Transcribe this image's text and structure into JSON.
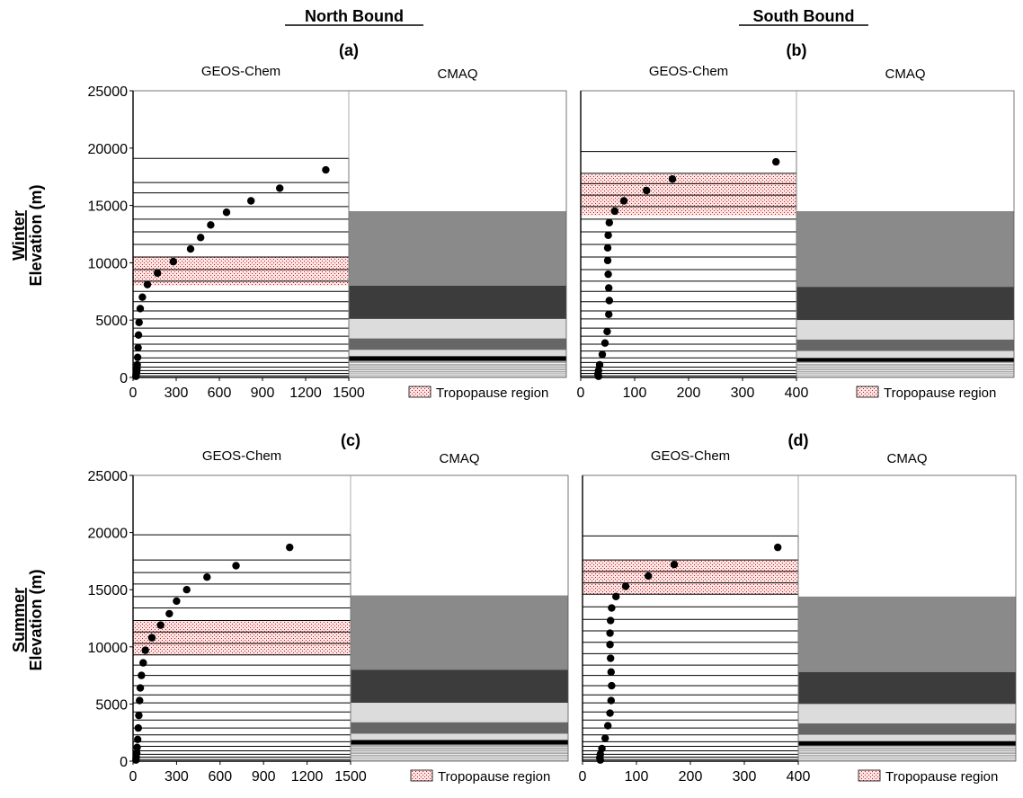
{
  "headers": {
    "north": "North Bound",
    "south": "South Bound",
    "winter": "Winter",
    "summer": "Summer",
    "ylabel": "Elevation (m)"
  },
  "legend_label": "Tropopause region",
  "colors": {
    "black": "#000000",
    "tropo_dot": "#d01818",
    "tropo_bg": "#fbe6e6",
    "cmaq_band_dark": "#3c3c3c",
    "cmaq_band_mid": "#8a8a8a",
    "cmaq_band_gray": "#666666",
    "cmaq_band_light": "#dcdcdc",
    "cmaq_band_thin": "#a8a8a8"
  },
  "chart_data": [
    {
      "type": "scatter",
      "id": "a",
      "panel_label": "(a)",
      "left_title": "GEOS-Chem",
      "right_title": "CMAQ",
      "ylim": [
        0,
        25000
      ],
      "yticks": [
        0,
        5000,
        10000,
        15000,
        20000,
        25000
      ],
      "xlim": [
        0,
        1500
      ],
      "xticks": [
        0,
        300,
        600,
        900,
        1200,
        1500
      ],
      "geos_levels": [
        0,
        150,
        350,
        600,
        900,
        1300,
        1700,
        2300,
        2900,
        3600,
        4300,
        5100,
        5800,
        6600,
        7500,
        8400,
        9400,
        10500,
        11600,
        12700,
        13800,
        14900,
        16100,
        17000,
        19100
      ],
      "tropopause": [
        8000,
        10500
      ],
      "points": [
        {
          "x": 20,
          "y": 100
        },
        {
          "x": 22,
          "y": 250
        },
        {
          "x": 25,
          "y": 480
        },
        {
          "x": 27,
          "y": 750
        },
        {
          "x": 29,
          "y": 1100
        },
        {
          "x": 32,
          "y": 1750
        },
        {
          "x": 35,
          "y": 2600
        },
        {
          "x": 38,
          "y": 3700
        },
        {
          "x": 42,
          "y": 4800
        },
        {
          "x": 50,
          "y": 6000
        },
        {
          "x": 65,
          "y": 7000
        },
        {
          "x": 100,
          "y": 8100
        },
        {
          "x": 170,
          "y": 9100
        },
        {
          "x": 280,
          "y": 10100
        },
        {
          "x": 400,
          "y": 11200
        },
        {
          "x": 470,
          "y": 12200
        },
        {
          "x": 540,
          "y": 13300
        },
        {
          "x": 650,
          "y": 14400
        },
        {
          "x": 820,
          "y": 15400
        },
        {
          "x": 1020,
          "y": 16500
        },
        {
          "x": 1340,
          "y": 18100
        }
      ],
      "cmaq_bands": [
        {
          "from": 8000,
          "to": 14500,
          "color": "#8a8a8a"
        },
        {
          "from": 5100,
          "to": 8000,
          "color": "#3c3c3c"
        },
        {
          "from": 3400,
          "to": 5100,
          "color": "#dcdcdc"
        },
        {
          "from": 2400,
          "to": 3400,
          "color": "#666666"
        },
        {
          "from": 1850,
          "to": 2400,
          "color": "#dcdcdc"
        },
        {
          "from": 1450,
          "to": 1850,
          "color": "#000000"
        },
        {
          "from": 0,
          "to": 1450,
          "color": "#a8a8a8"
        }
      ],
      "cmaq_lines": [
        100,
        250,
        400,
        600,
        800,
        1000,
        1200
      ]
    },
    {
      "type": "scatter",
      "id": "b",
      "panel_label": "(b)",
      "left_title": "GEOS-Chem",
      "right_title": "CMAQ",
      "ylim": [
        0,
        25000
      ],
      "yticks": [],
      "xlim": [
        0,
        400
      ],
      "xticks": [
        0,
        100,
        200,
        300,
        400
      ],
      "geos_levels": [
        0,
        150,
        350,
        600,
        900,
        1300,
        1700,
        2300,
        2900,
        3600,
        4300,
        5100,
        5800,
        6600,
        7500,
        8400,
        9400,
        10500,
        11600,
        12700,
        13800,
        14900,
        15900,
        16900,
        17800,
        19700
      ],
      "tropopause": [
        14100,
        17700
      ],
      "points": [
        {
          "x": 33,
          "y": 100
        },
        {
          "x": 32,
          "y": 300
        },
        {
          "x": 33,
          "y": 600
        },
        {
          "x": 35,
          "y": 1100
        },
        {
          "x": 40,
          "y": 2000
        },
        {
          "x": 45,
          "y": 3000
        },
        {
          "x": 49,
          "y": 4000
        },
        {
          "x": 52,
          "y": 5500
        },
        {
          "x": 53,
          "y": 6700
        },
        {
          "x": 52,
          "y": 7800
        },
        {
          "x": 51,
          "y": 9000
        },
        {
          "x": 50,
          "y": 10200
        },
        {
          "x": 50,
          "y": 11300
        },
        {
          "x": 51,
          "y": 12400
        },
        {
          "x": 53,
          "y": 13500
        },
        {
          "x": 63,
          "y": 14500
        },
        {
          "x": 80,
          "y": 15400
        },
        {
          "x": 122,
          "y": 16300
        },
        {
          "x": 170,
          "y": 17300
        },
        {
          "x": 362,
          "y": 18800
        }
      ],
      "cmaq_bands": [
        {
          "from": 7900,
          "to": 14500,
          "color": "#8a8a8a"
        },
        {
          "from": 5000,
          "to": 7900,
          "color": "#3c3c3c"
        },
        {
          "from": 3300,
          "to": 5000,
          "color": "#dcdcdc"
        },
        {
          "from": 2300,
          "to": 3300,
          "color": "#666666"
        },
        {
          "from": 1700,
          "to": 2300,
          "color": "#dcdcdc"
        },
        {
          "from": 1350,
          "to": 1700,
          "color": "#000000"
        },
        {
          "from": 0,
          "to": 1350,
          "color": "#a8a8a8"
        }
      ],
      "cmaq_lines": [
        100,
        250,
        400,
        600,
        800,
        1000,
        1200
      ]
    },
    {
      "type": "scatter",
      "id": "c",
      "panel_label": "(c)",
      "left_title": "GEOS-Chem",
      "right_title": "CMAQ",
      "ylim": [
        0,
        25000
      ],
      "yticks": [
        0,
        5000,
        10000,
        15000,
        20000,
        25000
      ],
      "xlim": [
        0,
        1500
      ],
      "xticks": [
        0,
        300,
        600,
        900,
        1200,
        1500
      ],
      "geos_levels": [
        0,
        150,
        350,
        600,
        900,
        1300,
        1700,
        2300,
        2900,
        3600,
        4300,
        5100,
        5800,
        6600,
        7500,
        8400,
        9300,
        10300,
        11300,
        12300,
        13400,
        14400,
        15500,
        16500,
        17600,
        19800
      ],
      "tropopause": [
        9300,
        12300
      ],
      "points": [
        {
          "x": 20,
          "y": 100
        },
        {
          "x": 22,
          "y": 350
        },
        {
          "x": 25,
          "y": 700
        },
        {
          "x": 28,
          "y": 1200
        },
        {
          "x": 32,
          "y": 1900
        },
        {
          "x": 36,
          "y": 2900
        },
        {
          "x": 40,
          "y": 4000
        },
        {
          "x": 45,
          "y": 5300
        },
        {
          "x": 50,
          "y": 6400
        },
        {
          "x": 58,
          "y": 7500
        },
        {
          "x": 70,
          "y": 8600
        },
        {
          "x": 85,
          "y": 9700
        },
        {
          "x": 130,
          "y": 10800
        },
        {
          "x": 190,
          "y": 11900
        },
        {
          "x": 250,
          "y": 12900
        },
        {
          "x": 300,
          "y": 14000
        },
        {
          "x": 370,
          "y": 15000
        },
        {
          "x": 510,
          "y": 16100
        },
        {
          "x": 710,
          "y": 17100
        },
        {
          "x": 1080,
          "y": 18700
        }
      ],
      "cmaq_bands": [
        {
          "from": 8000,
          "to": 14500,
          "color": "#8a8a8a"
        },
        {
          "from": 5100,
          "to": 8000,
          "color": "#3c3c3c"
        },
        {
          "from": 3400,
          "to": 5100,
          "color": "#dcdcdc"
        },
        {
          "from": 2400,
          "to": 3400,
          "color": "#666666"
        },
        {
          "from": 1850,
          "to": 2400,
          "color": "#dcdcdc"
        },
        {
          "from": 1450,
          "to": 1850,
          "color": "#000000"
        },
        {
          "from": 0,
          "to": 1450,
          "color": "#a8a8a8"
        }
      ],
      "cmaq_lines": [
        100,
        250,
        400,
        600,
        800,
        1000,
        1200
      ]
    },
    {
      "type": "scatter",
      "id": "d",
      "panel_label": "(d)",
      "left_title": "GEOS-Chem",
      "right_title": "CMAQ",
      "ylim": [
        0,
        25000
      ],
      "yticks": [],
      "xlim": [
        0,
        400
      ],
      "xticks": [
        0,
        100,
        200,
        300,
        400
      ],
      "geos_levels": [
        0,
        150,
        350,
        600,
        900,
        1300,
        1700,
        2300,
        2900,
        3600,
        4300,
        5100,
        5800,
        6600,
        7500,
        8400,
        9400,
        10400,
        11400,
        12400,
        13500,
        14600,
        15600,
        16600,
        17600,
        19700
      ],
      "tropopause": [
        14600,
        17600
      ],
      "points": [
        {
          "x": 33,
          "y": 100
        },
        {
          "x": 32,
          "y": 300
        },
        {
          "x": 33,
          "y": 600
        },
        {
          "x": 36,
          "y": 1100
        },
        {
          "x": 42,
          "y": 2000
        },
        {
          "x": 47,
          "y": 3100
        },
        {
          "x": 51,
          "y": 4200
        },
        {
          "x": 53,
          "y": 5300
        },
        {
          "x": 54,
          "y": 6600
        },
        {
          "x": 53,
          "y": 7800
        },
        {
          "x": 52,
          "y": 9000
        },
        {
          "x": 51,
          "y": 10200
        },
        {
          "x": 51,
          "y": 11200
        },
        {
          "x": 52,
          "y": 12300
        },
        {
          "x": 54,
          "y": 13400
        },
        {
          "x": 62,
          "y": 14400
        },
        {
          "x": 80,
          "y": 15300
        },
        {
          "x": 122,
          "y": 16200
        },
        {
          "x": 170,
          "y": 17200
        },
        {
          "x": 362,
          "y": 18700
        }
      ],
      "cmaq_bands": [
        {
          "from": 7800,
          "to": 14400,
          "color": "#8a8a8a"
        },
        {
          "from": 5000,
          "to": 7800,
          "color": "#3c3c3c"
        },
        {
          "from": 3300,
          "to": 5000,
          "color": "#dcdcdc"
        },
        {
          "from": 2300,
          "to": 3300,
          "color": "#666666"
        },
        {
          "from": 1750,
          "to": 2300,
          "color": "#dcdcdc"
        },
        {
          "from": 1350,
          "to": 1750,
          "color": "#000000"
        },
        {
          "from": 0,
          "to": 1350,
          "color": "#a8a8a8"
        }
      ],
      "cmaq_lines": [
        100,
        250,
        400,
        600,
        800,
        1000,
        1200
      ]
    }
  ]
}
